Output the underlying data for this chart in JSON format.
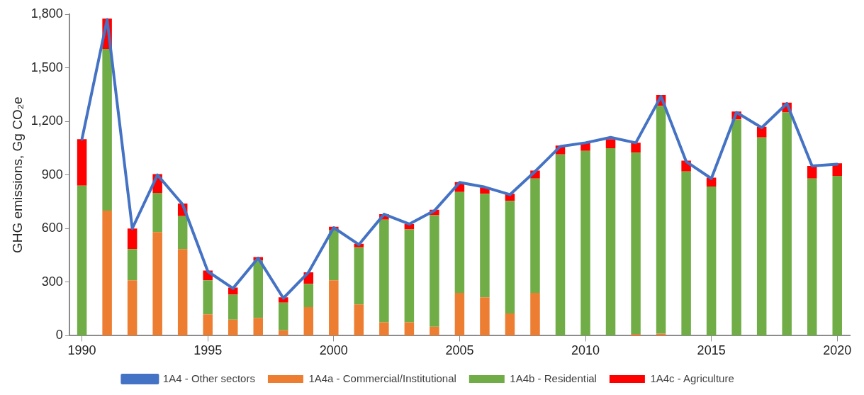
{
  "chart_data": {
    "type": "bar",
    "stacked": true,
    "ylabel": "GHG emissions, Gg CO₂e",
    "categories": [
      "1990",
      null,
      null,
      null,
      null,
      "1995",
      null,
      null,
      null,
      null,
      "2000",
      null,
      null,
      null,
      null,
      "2005",
      null,
      null,
      null,
      null,
      "2010",
      null,
      null,
      null,
      null,
      "2015",
      null,
      null,
      null,
      null,
      "2020"
    ],
    "series": [
      {
        "name": "1A4a - Commercial/Institutional",
        "color": "#ed7d31",
        "values": [
          0,
          700,
          310,
          580,
          485,
          120,
          90,
          100,
          30,
          160,
          310,
          175,
          75,
          75,
          50,
          240,
          215,
          125,
          240,
          0,
          0,
          0,
          10,
          12,
          0,
          0,
          0,
          0,
          0,
          0,
          0
        ]
      },
      {
        "name": "1A4b - Residential",
        "color": "#70ad47",
        "values": [
          840,
          905,
          175,
          220,
          185,
          190,
          140,
          320,
          155,
          130,
          280,
          320,
          575,
          520,
          625,
          565,
          580,
          630,
          640,
          1015,
          1035,
          1050,
          1015,
          1275,
          920,
          835,
          1210,
          1110,
          1250,
          880,
          895
        ]
      },
      {
        "name": "1A4c - Agriculture",
        "color": "#ff0000",
        "values": [
          260,
          170,
          115,
          105,
          70,
          55,
          40,
          20,
          30,
          65,
          20,
          20,
          30,
          30,
          30,
          55,
          35,
          40,
          45,
          50,
          45,
          50,
          55,
          60,
          60,
          50,
          45,
          60,
          55,
          70,
          70
        ]
      },
      {
        "name": "1A4 - Other sectors",
        "type": "line",
        "color": "#4472c4",
        "values": [
          1100,
          1770,
          600,
          900,
          735,
          360,
          265,
          435,
          210,
          355,
          605,
          510,
          680,
          625,
          700,
          858,
          832,
          790,
          920,
          1060,
          1080,
          1110,
          1080,
          1340,
          975,
          880,
          1250,
          1165,
          1300,
          950,
          960
        ]
      }
    ],
    "ylim": [
      0,
      1800
    ],
    "yticks": [
      0,
      {
        "value": 300,
        "label": "300"
      },
      {
        "value": 600,
        "label": "600"
      },
      {
        "value": 900,
        "label": "900"
      },
      {
        "value": 1200,
        "label": "1,200"
      },
      {
        "value": 1500,
        "label": "1,500"
      },
      {
        "value": 1800,
        "label": "1,800"
      }
    ],
    "grid": false,
    "legend": "bottom",
    "marker": "none",
    "line_style": "solid"
  }
}
